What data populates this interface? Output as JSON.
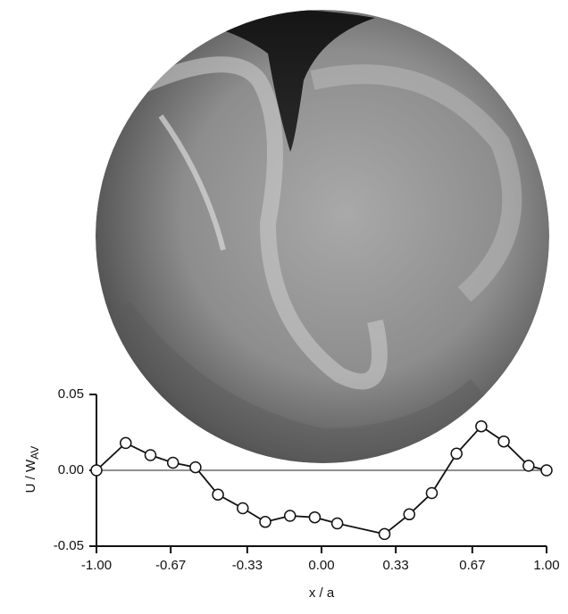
{
  "chart_data": {
    "type": "line",
    "xlabel": "x / a",
    "ylabel": "U / W",
    "ylabel_subscript": "AV",
    "x": [
      -1.0,
      -0.87,
      -0.76,
      -0.66,
      -0.56,
      -0.46,
      -0.35,
      -0.25,
      -0.14,
      -0.03,
      0.07,
      0.28,
      0.39,
      0.49,
      0.6,
      0.71,
      0.81,
      0.92,
      1.0
    ],
    "series": [
      {
        "color": "#111111",
        "values": [
          0.0,
          0.018,
          0.01,
          0.005,
          0.002,
          -0.016,
          -0.025,
          -0.034,
          -0.03,
          -0.031,
          -0.035,
          -0.042,
          -0.029,
          -0.015,
          0.011,
          0.029,
          0.019,
          0.003,
          0.0
        ]
      }
    ],
    "xlim": [
      -1.0,
      1.0
    ],
    "xticks": [
      {
        "value": -1.0,
        "label": "-1.00"
      },
      -0.67,
      -0.33,
      {
        "value": 0,
        "label": "0.00"
      },
      0.33,
      0.67,
      {
        "value": 1.0,
        "label": "1.00"
      }
    ],
    "ylim": [
      -0.05,
      0.05
    ],
    "yticks": [
      -0.05,
      {
        "value": 0,
        "label": "0.00"
      },
      0.05
    ],
    "zero_line": true
  }
}
